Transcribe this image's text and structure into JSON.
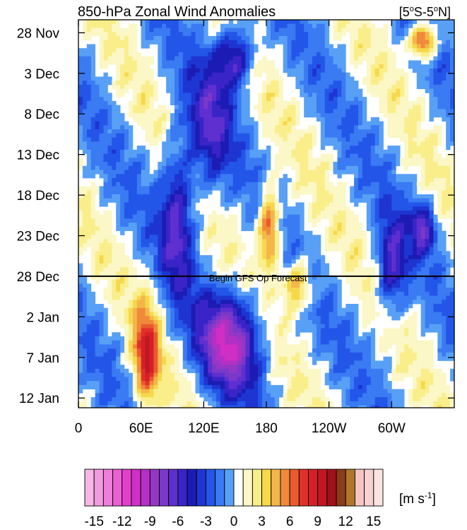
{
  "chart_data": {
    "type": "heatmap",
    "title": "850-hPa Zonal Wind Anomalies",
    "region": "[5°S-5°N]",
    "region_parts": {
      "open": "[5",
      "deg1": "o",
      "mid": "S-5",
      "deg2": "o",
      "close": "N]"
    },
    "x_tick_labels": [
      "0",
      "60E",
      "120E",
      "180",
      "120W",
      "60W"
    ],
    "x_tick_lons": [
      0,
      60,
      120,
      180,
      240,
      300
    ],
    "xlim": [
      0,
      360
    ],
    "y_tick_labels": [
      "28 Nov",
      "3 Dec",
      "8 Dec",
      "13 Dec",
      "18 Dec",
      "23 Dec",
      "28 Dec",
      "2 Jan",
      "7 Jan",
      "12 Jan"
    ],
    "y_tick_days": [
      0,
      5,
      10,
      15,
      20,
      25,
      30,
      35,
      40,
      45
    ],
    "ylim_days": [
      -1.6,
      46.2
    ],
    "forecast_line": {
      "day": 30,
      "label": "Begin GFS Op Forecast"
    },
    "colorbar": {
      "levels": [
        -16,
        -15,
        -14,
        -13,
        -12,
        -11,
        -10,
        -9,
        -8,
        -7,
        -6,
        -5,
        -4,
        -3,
        -2,
        -1,
        0,
        1,
        2,
        3,
        4,
        5,
        6,
        7,
        8,
        9,
        10,
        11,
        12,
        13,
        14,
        15,
        16
      ],
      "tick_labels": [
        "-15",
        "-12",
        "-9",
        "-6",
        "-3",
        "0",
        "3",
        "6",
        "9",
        "12",
        "15"
      ],
      "tick_values": [
        -15,
        -12,
        -9,
        -6,
        -3,
        0,
        3,
        6,
        9,
        12,
        15
      ],
      "units_parts": {
        "pre": "[m s",
        "exp": "-1",
        "post": "]"
      }
    },
    "anomaly_features": [
      {
        "lon": 150,
        "day": 3,
        "lon_width": 18,
        "day_width": 4,
        "value": -7
      },
      {
        "lon": 125,
        "day": 12,
        "lon_width": 20,
        "day_width": 8,
        "value": -5
      },
      {
        "lon": 95,
        "day": 22,
        "lon_width": 16,
        "day_width": 10,
        "value": -6
      },
      {
        "lon": 145,
        "day": 38,
        "lon_width": 30,
        "day_width": 6,
        "value": -9
      },
      {
        "lon": 65,
        "day": 40,
        "lon_width": 12,
        "day_width": 6,
        "value": 8
      },
      {
        "lon": 183,
        "day": 24,
        "lon_width": 10,
        "day_width": 5,
        "value": 8
      },
      {
        "lon": 210,
        "day": 31,
        "lon_width": 14,
        "day_width": 3,
        "value": 6
      },
      {
        "lon": 330,
        "day": 1,
        "lon_width": 12,
        "day_width": 2,
        "value": 9
      },
      {
        "lon": 300,
        "day": 29,
        "lon_width": 14,
        "day_width": 6,
        "value": -6
      },
      {
        "lon": 330,
        "day": 24,
        "lon_width": 12,
        "day_width": 3,
        "value": -6
      }
    ],
    "colors": {
      "min_tail": "#f5b8e6",
      "max_tail": "#fbe4e0",
      "forecast_line": "#000000"
    }
  }
}
